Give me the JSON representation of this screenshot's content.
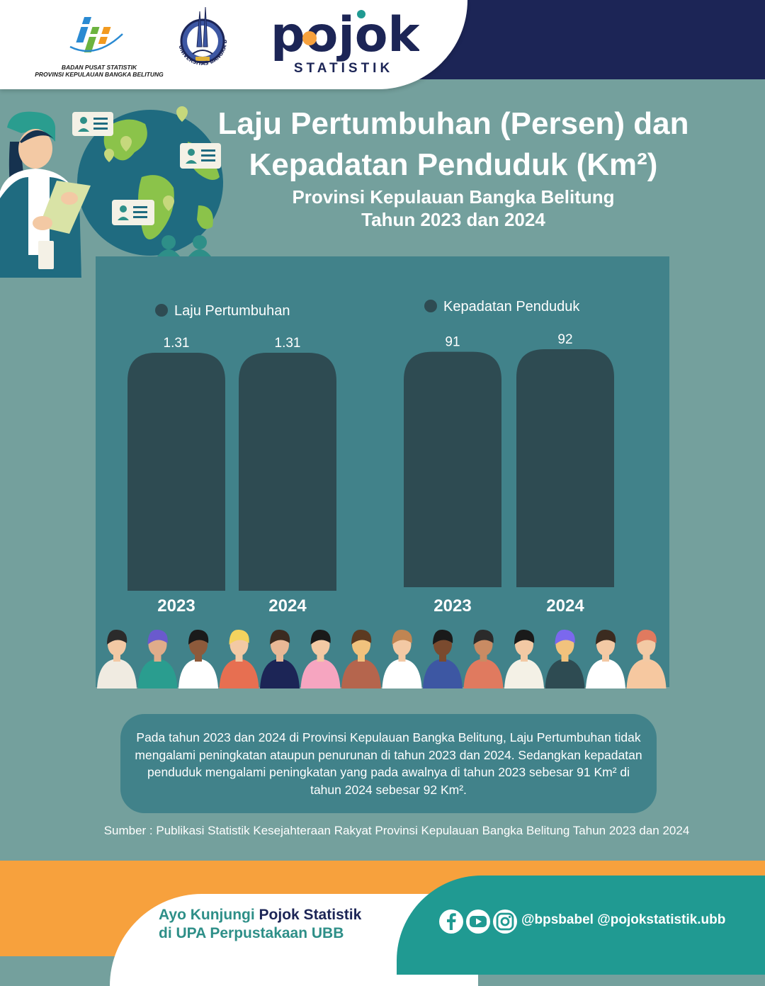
{
  "header": {
    "bps_caption_line1": "BADAN PUSAT STATISTIK",
    "bps_caption_line2": "PROVINSI KEPULAUAN BANGKA BELITUNG",
    "ubb_ring_text": "UNIVERSITAS BANGKA BELITUNG",
    "pojok_word": "pojok",
    "pojok_sub": "STATISTIK"
  },
  "title": {
    "line1": "Laju Pertumbuhan (Persen) dan",
    "line2": "Kepadatan Penduduk (Km²)",
    "subtitle1": "Provinsi Kepulauan Bangka Belitung",
    "subtitle2": "Tahun 2023 dan 2024"
  },
  "chart_data": [
    {
      "type": "bar",
      "legend": "Laju Pertumbuhan",
      "categories": [
        "2023",
        "2024"
      ],
      "values": [
        1.31,
        1.31
      ],
      "value_labels": [
        "1.31",
        "1.31"
      ]
    },
    {
      "type": "bar",
      "legend": "Kepadatan Penduduk",
      "categories": [
        "2023",
        "2024"
      ],
      "values": [
        91,
        92
      ],
      "value_labels": [
        "91",
        "92"
      ]
    }
  ],
  "note": "Pada tahun 2023 dan 2024 di Provinsi Kepulauan Bangka Belitung, Laju Pertumbuhan tidak mengalami peningkatan ataupun penurunan di tahun 2023 dan 2024. Sedangkan kepadatan penduduk mengalami peningkatan yang pada awalnya di tahun 2023 sebesar 91 Km² di tahun 2024 sebesar 92 Km².",
  "source": "Sumber : Publikasi Statistik Kesejahteraan Rakyat Provinsi Kepulauan Bangka Belitung Tahun 2023 dan 2024",
  "footer": {
    "line1_a": "Ayo Kunjungi ",
    "line1_b": "Pojok Statistik",
    "line2": "di UPA Perpustakaan UBB",
    "handles": "@bpsbabel  @pojokstatistik.ubb"
  },
  "colors": {
    "background": "#74a09d",
    "panel": "#41828a",
    "bar": "#2e4b52",
    "navy": "#1c2556",
    "orange": "#f7a13d",
    "teal": "#209a92"
  },
  "icons": [
    "bps-logo-icon",
    "ubb-logo-icon",
    "facebook-icon",
    "youtube-icon",
    "instagram-icon",
    "person-card-icon",
    "location-pin-icon",
    "globe-icon"
  ]
}
